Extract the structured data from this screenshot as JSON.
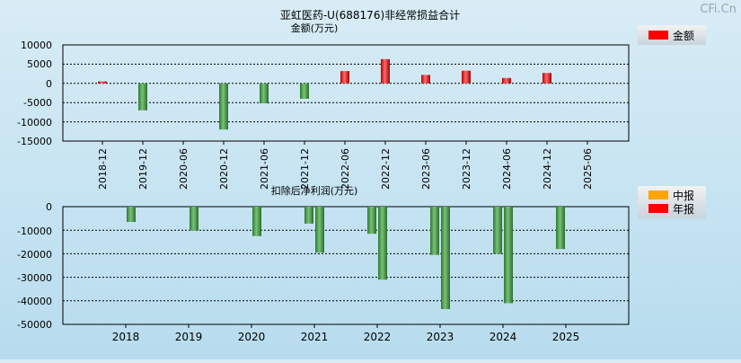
{
  "watermark": "CFi.Cn",
  "chart_data": [
    {
      "type": "bar",
      "title": "亚虹医药-U(688176)非经常损益合计",
      "subtitle": "金额(万元)",
      "categories": [
        "2018-12",
        "2019-12",
        "2020-06",
        "2020-12",
        "2021-06",
        "2021-12",
        "2022-06",
        "2022-12",
        "2023-06",
        "2023-12",
        "2024-06",
        "2024-12",
        "2025-06"
      ],
      "series": [
        {
          "name": "金额",
          "color": "#ff2020",
          "values": [
            500,
            -7000,
            null,
            -12000,
            -5200,
            -4000,
            3200,
            6300,
            2200,
            3300,
            1400,
            2700,
            null
          ]
        }
      ],
      "legend": [
        "金额"
      ],
      "yticks": [
        "10000",
        "5000",
        "0",
        "-5000",
        "-10000",
        "-15000"
      ],
      "ylim": [
        -15000,
        10000
      ],
      "legend_position": "top-right"
    },
    {
      "type": "bar",
      "title": "扣除后净利润(万元)",
      "categories": [
        "2018",
        "2019",
        "2020",
        "2021",
        "2022",
        "2023",
        "2024",
        "2025"
      ],
      "series": [
        {
          "name": "中报",
          "color": "#ffa500",
          "values": [
            null,
            null,
            null,
            -7200,
            -11500,
            -20500,
            -20000,
            -18000
          ]
        },
        {
          "name": "年报",
          "color": "#ff0000",
          "values": [
            -6500,
            -10200,
            -12500,
            -19500,
            -31000,
            -43500,
            -41000,
            null
          ]
        }
      ],
      "legend": [
        "中报",
        "年报"
      ],
      "yticks": [
        "0",
        "-10000",
        "-20000",
        "-30000",
        "-40000",
        "-50000"
      ],
      "ylim": [
        -50000,
        0
      ],
      "legend_position": "top-right"
    }
  ]
}
